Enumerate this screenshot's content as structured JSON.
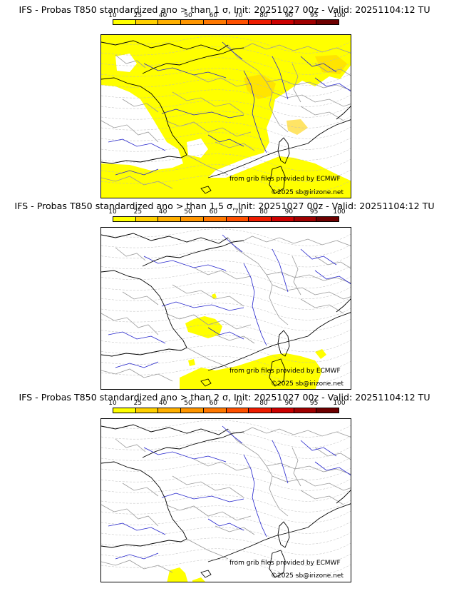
{
  "colors": {
    "scale": [
      "#ffff00",
      "#ffd000",
      "#ffb000",
      "#ff9600",
      "#ff7800",
      "#ff5000",
      "#ee1c00",
      "#cc0000",
      "#a00000",
      "#6e0000"
    ],
    "probability_fill": "#ffff00",
    "probability_fill_high": "#ffd200",
    "coast": "#000000",
    "borders": "#999999",
    "rivers": "#2222cc"
  },
  "scale_labels": [
    "10",
    "25",
    "40",
    "50",
    "60",
    "70",
    "80",
    "90",
    "95",
    "100"
  ],
  "credits": {
    "source": "from grib files provided by ECMWF",
    "copyright": "©2025 sb@irizone.net"
  },
  "panels": [
    {
      "title": "IFS - Probas T850  standardized ano > than 1 σ, Init: 20251027 00z - Valid: 20251104:12 TU",
      "coverage": "high"
    },
    {
      "title": "IFS - Probas T850  standardized ano > than 1.5 σ, Init: 20251027 00z - Valid: 20251104:12 TU",
      "coverage": "medium"
    },
    {
      "title": "IFS - Probas T850  standardized ano > than 2 σ, Init: 20251027 00z - Valid: 20251104:12 TU",
      "coverage": "low"
    }
  ]
}
